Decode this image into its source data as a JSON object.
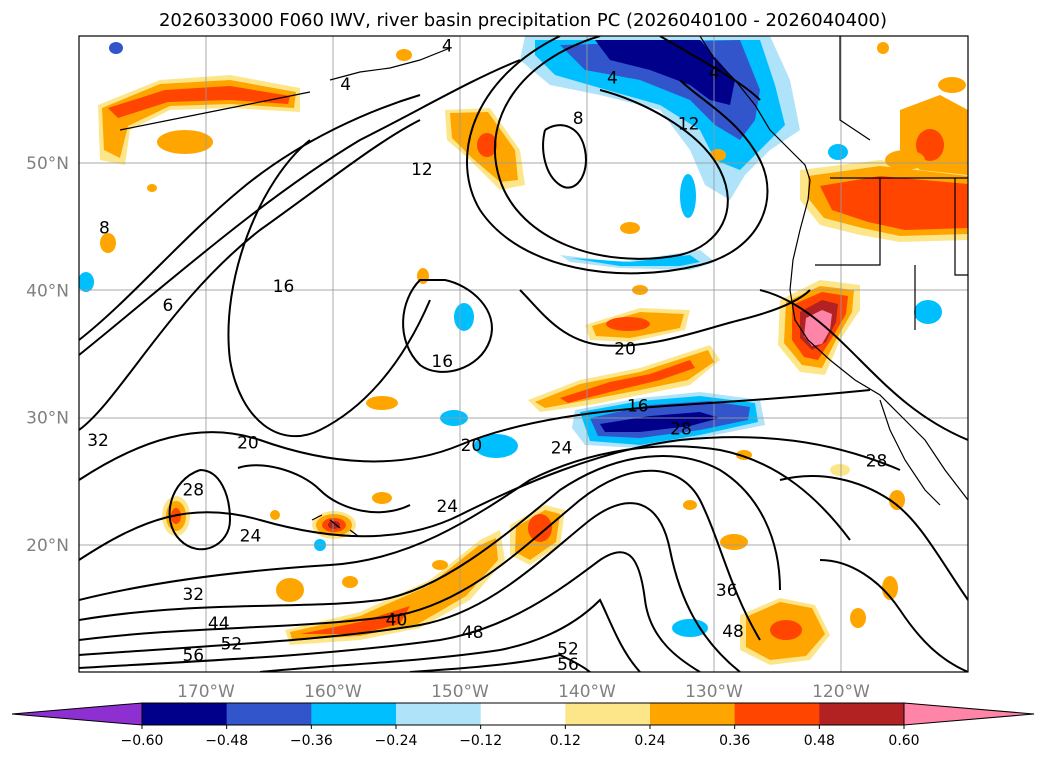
{
  "chart_data": {
    "type": "heatmap",
    "title": "2026033000 F060 IWV, river basin precipitation PC (2026040100 - 2026040400)",
    "map_extent": {
      "lon": [
        -180,
        -110
      ],
      "lat": [
        10,
        60
      ]
    },
    "lat_ticks": [
      {
        "value": 20,
        "label": "20°N"
      },
      {
        "value": 30,
        "label": "30°N"
      },
      {
        "value": 40,
        "label": "40°N"
      },
      {
        "value": 50,
        "label": "50°N"
      }
    ],
    "lon_ticks": [
      {
        "value": -170,
        "label": "170°W"
      },
      {
        "value": -160,
        "label": "160°W"
      },
      {
        "value": -150,
        "label": "150°W"
      },
      {
        "value": -140,
        "label": "140°W"
      },
      {
        "value": -130,
        "label": "130°W"
      },
      {
        "value": -120,
        "label": "120°W"
      }
    ],
    "colorbar": {
      "levels": [
        "−0.60",
        "−0.48",
        "−0.36",
        "−0.24",
        "−0.12",
        "0.12",
        "0.24",
        "0.36",
        "0.48",
        "0.60"
      ],
      "colors": [
        "#8e2fd1",
        "#00008b",
        "#3355cc",
        "#00bfff",
        "#aee3fa",
        "#ffffff",
        "#fde68a",
        "#ffa500",
        "#ff4500",
        "#b22222",
        "#ff85a8"
      ],
      "extend": "both"
    },
    "contour_labels": [
      {
        "text": "4",
        "lon": -151.0,
        "lat": 59.0
      },
      {
        "text": "4",
        "lon": -138.0,
        "lat": 56.5
      },
      {
        "text": "4",
        "lon": -159.0,
        "lat": 56.0
      },
      {
        "text": "4",
        "lon": -130.0,
        "lat": 56.9
      },
      {
        "text": "8",
        "lon": -140.7,
        "lat": 53.3
      },
      {
        "text": "12",
        "lon": -132.0,
        "lat": 52.9
      },
      {
        "text": "12",
        "lon": -153.0,
        "lat": 49.3
      },
      {
        "text": "16",
        "lon": -163.9,
        "lat": 40.1
      },
      {
        "text": "16",
        "lon": -151.4,
        "lat": 34.2
      },
      {
        "text": "16",
        "lon": -136.0,
        "lat": 30.7
      },
      {
        "text": "20",
        "lon": -137.0,
        "lat": 35.2
      },
      {
        "text": "20",
        "lon": -166.7,
        "lat": 27.8
      },
      {
        "text": "20",
        "lon": -149.1,
        "lat": 27.6
      },
      {
        "text": "24",
        "lon": -142.0,
        "lat": 27.4
      },
      {
        "text": "24",
        "lon": -151.0,
        "lat": 22.8
      },
      {
        "text": "24",
        "lon": -166.5,
        "lat": 20.5
      },
      {
        "text": "28",
        "lon": -132.6,
        "lat": 28.9
      },
      {
        "text": "28",
        "lon": -117.2,
        "lat": 26.4
      },
      {
        "text": "28",
        "lon": -171.0,
        "lat": 24.1
      },
      {
        "text": "32",
        "lon": -178.5,
        "lat": 28.0
      },
      {
        "text": "32",
        "lon": -171.0,
        "lat": 15.9
      },
      {
        "text": "36",
        "lon": -129.0,
        "lat": 16.2
      },
      {
        "text": "40",
        "lon": -155.0,
        "lat": 13.9
      },
      {
        "text": "44",
        "lon": -169.0,
        "lat": 13.6
      },
      {
        "text": "48",
        "lon": -149.0,
        "lat": 12.9
      },
      {
        "text": "48",
        "lon": -128.5,
        "lat": 13.0
      },
      {
        "text": "52",
        "lon": -168.0,
        "lat": 12.0
      },
      {
        "text": "52",
        "lon": -141.5,
        "lat": 11.6
      },
      {
        "text": "56",
        "lon": -171.0,
        "lat": 11.1
      },
      {
        "text": "56",
        "lon": -141.5,
        "lat": 10.4
      },
      {
        "text": "8",
        "lon": -178.0,
        "lat": 44.7
      },
      {
        "text": "6",
        "lon": -173.0,
        "lat": 38.6
      }
    ]
  }
}
